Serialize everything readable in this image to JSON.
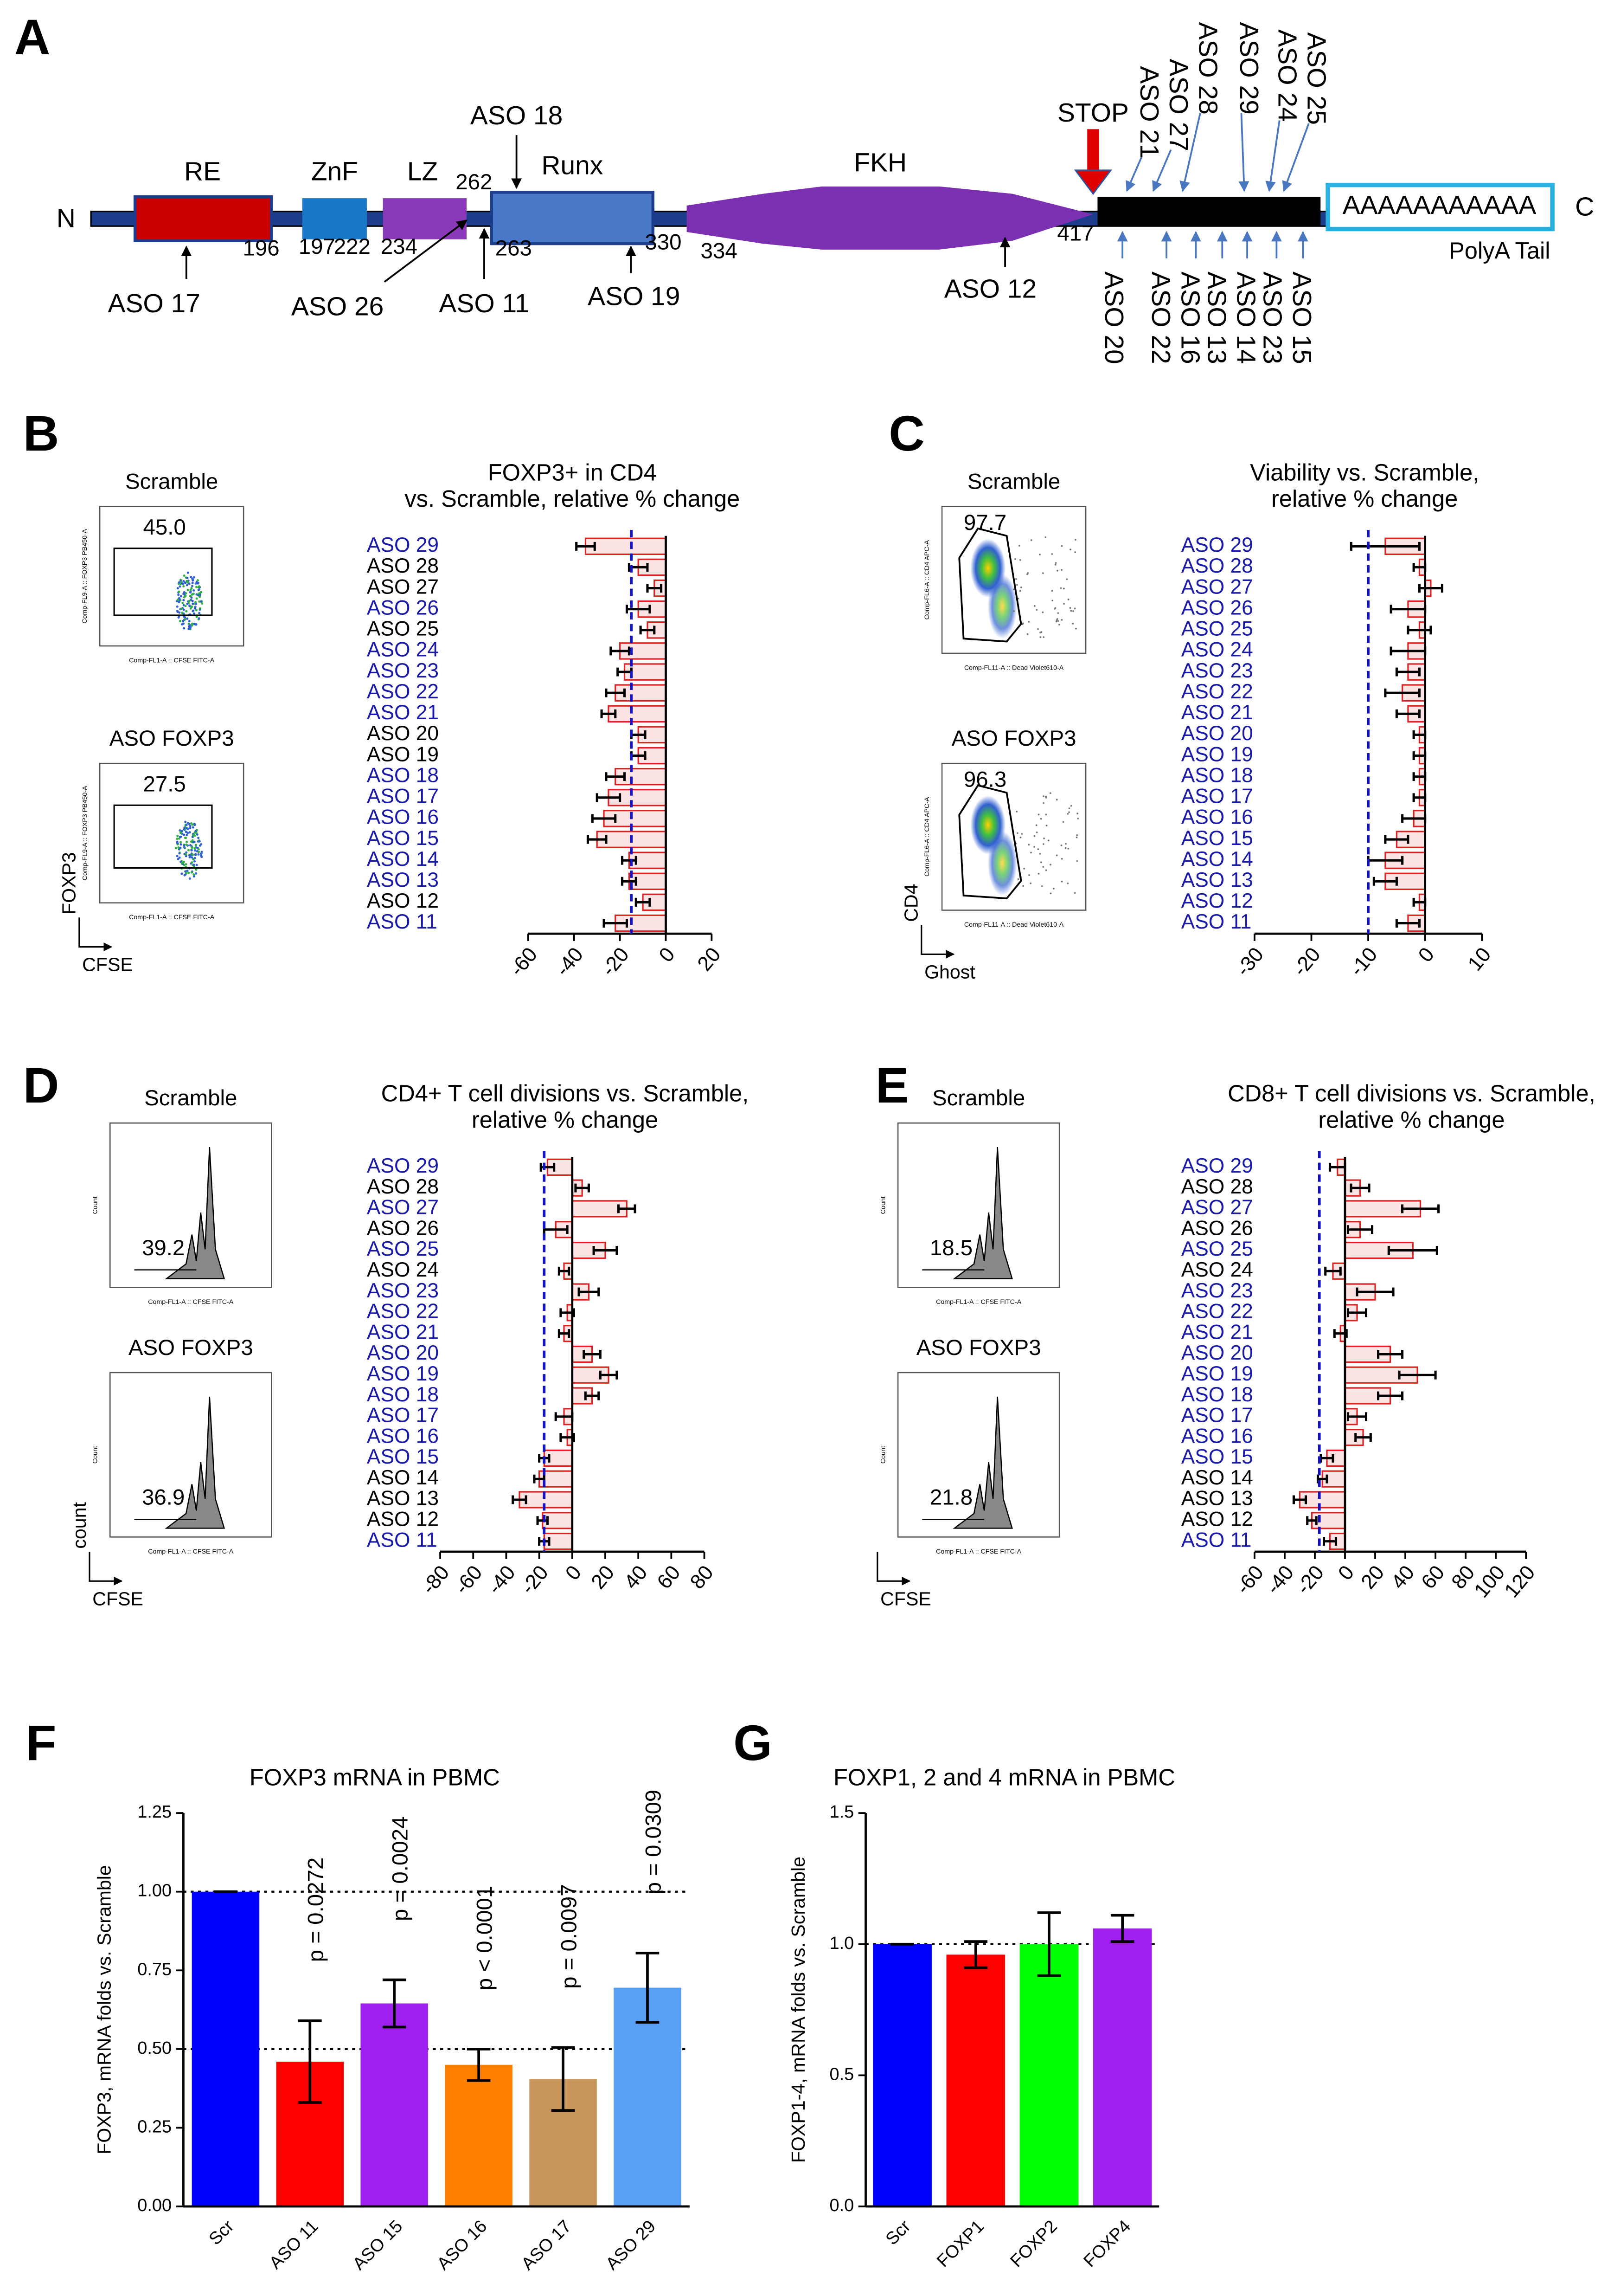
{
  "panel_a": {
    "letter": "A",
    "n_term": "N",
    "c_term": "C",
    "domains": [
      "RE",
      "ZnF",
      "LZ",
      "Runx",
      "FKH"
    ],
    "positions": [
      "196",
      "197",
      "222",
      "234",
      "262",
      "263",
      "330",
      "334",
      "417"
    ],
    "stop": "STOP",
    "polya": "AAAAAAAAAAA",
    "polya_label": "PolyA Tail",
    "aso_below": [
      "ASO 17",
      "ASO 26",
      "ASO 11",
      "ASO 19",
      "ASO 12"
    ],
    "aso_above": [
      "ASO 18"
    ],
    "aso_utr_top": [
      "ASO 21",
      "ASO 27",
      "ASO 28",
      "ASO 29",
      "ASO 24",
      "ASO 25"
    ],
    "aso_utr_bottom": [
      "ASO 20",
      "ASO 22",
      "ASO 16",
      "ASO 13",
      "ASO 14",
      "ASO 23",
      "ASO 15"
    ]
  },
  "chart_data": [
    {
      "type": "bar",
      "orientation": "horizontal",
      "letter": "B",
      "title": [
        "FOXP3+ in CD4",
        "vs. Scramble, relative % change"
      ],
      "categories": [
        "ASO 29",
        "ASO 28",
        "ASO 27",
        "ASO 26",
        "ASO 25",
        "ASO 24",
        "ASO 23",
        "ASO 22",
        "ASO 21",
        "ASO 20",
        "ASO 19",
        "ASO 18",
        "ASO 17",
        "ASO 16",
        "ASO 15",
        "ASO 14",
        "ASO 13",
        "ASO 12",
        "ASO 11"
      ],
      "label_colors": [
        "#1a1aa8",
        "#000000",
        "#000000",
        "#1a1aa8",
        "#000000",
        "#1a1aa8",
        "#1a1aa8",
        "#1a1aa8",
        "#1a1aa8",
        "#000000",
        "#000000",
        "#1a1aa8",
        "#1a1aa8",
        "#1a1aa8",
        "#1a1aa8",
        "#1a1aa8",
        "#1a1aa8",
        "#000000",
        "#1a1aa8"
      ],
      "values": [
        -35,
        -12,
        -5,
        -12,
        -8,
        -20,
        -18,
        -22,
        -25,
        -12,
        -12,
        -22,
        -25,
        -27,
        -30,
        -16,
        -16,
        -10,
        -22
      ],
      "errors": [
        4,
        4,
        3,
        5,
        3,
        4,
        3,
        4,
        3,
        3,
        3,
        4,
        5,
        5,
        4,
        3,
        3,
        3,
        5
      ],
      "color": "#e02020",
      "fill": "#fde4e4",
      "ref_line": -15,
      "ref_color": "#1212c0",
      "xlim": [
        -60,
        20
      ],
      "xticks": [
        -60,
        -40,
        -20,
        0,
        20
      ],
      "inset_kind": "scatter",
      "inset_y_label": "FOXP3",
      "inset_x_label": "CFSE",
      "insets": [
        {
          "title": "Scramble",
          "gate": "45.0",
          "y_axis": "Comp-FL9-A :: FOXP3 PB450-A",
          "x_axis": "Comp-FL1-A :: CFSE FITC-A"
        },
        {
          "title": "ASO FOXP3",
          "gate": "27.5",
          "y_axis": "Comp-FL9-A :: FOXP3 PB450-A",
          "x_axis": "Comp-FL1-A :: CFSE FITC-A"
        }
      ]
    },
    {
      "type": "bar",
      "orientation": "horizontal",
      "letter": "C",
      "title": [
        "Viability vs. Scramble,",
        "relative % change"
      ],
      "categories": [
        "ASO 29",
        "ASO 28",
        "ASO 27",
        "ASO 26",
        "ASO 25",
        "ASO 24",
        "ASO 23",
        "ASO 22",
        "ASO 21",
        "ASO 20",
        "ASO 19",
        "ASO 18",
        "ASO 17",
        "ASO 16",
        "ASO 15",
        "ASO 14",
        "ASO 13",
        "ASO 12",
        "ASO 11"
      ],
      "label_colors": [
        "#1a1aa8",
        "#1a1aa8",
        "#1a1aa8",
        "#1a1aa8",
        "#1a1aa8",
        "#1a1aa8",
        "#1a1aa8",
        "#1a1aa8",
        "#1a1aa8",
        "#1a1aa8",
        "#1a1aa8",
        "#1a1aa8",
        "#1a1aa8",
        "#1a1aa8",
        "#1a1aa8",
        "#1a1aa8",
        "#1a1aa8",
        "#1a1aa8",
        "#1a1aa8"
      ],
      "values": [
        -7,
        -1,
        1,
        -3,
        -1,
        -3,
        -3,
        -4,
        -3,
        -1,
        -1,
        -1,
        -1,
        -2,
        -5,
        -7,
        -7,
        -1,
        -3
      ],
      "errors": [
        6,
        1,
        2,
        3,
        2,
        3,
        2,
        3,
        2,
        1,
        1,
        1,
        1,
        2,
        2,
        3,
        2,
        1,
        2
      ],
      "color": "#e02020",
      "fill": "#fde4e4",
      "ref_line": -10,
      "ref_color": "#1212c0",
      "xlim": [
        -30,
        10
      ],
      "xticks": [
        -30,
        -20,
        -10,
        0,
        10
      ],
      "inset_kind": "gate",
      "inset_y_label": "CD4",
      "inset_x_label": "Ghost",
      "insets": [
        {
          "title": "Scramble",
          "gate": "97.7",
          "y_axis": "Comp-FL6-A :: CD4 APC-A",
          "x_axis": "Comp-FL11-A :: Dead Violet610-A"
        },
        {
          "title": "ASO FOXP3",
          "gate": "96.3",
          "y_axis": "Comp-FL6-A :: CD4 APC-A",
          "x_axis": "Comp-FL11-A :: Dead Violet610-A"
        }
      ]
    },
    {
      "type": "bar",
      "orientation": "horizontal",
      "letter": "D",
      "title": [
        "CD4+ T cell divisions vs. Scramble,",
        "relative % change"
      ],
      "categories": [
        "ASO 29",
        "ASO 28",
        "ASO 27",
        "ASO 26",
        "ASO 25",
        "ASO 24",
        "ASO 23",
        "ASO 22",
        "ASO 21",
        "ASO 20",
        "ASO 19",
        "ASO 18",
        "ASO 17",
        "ASO 16",
        "ASO 15",
        "ASO 14",
        "ASO 13",
        "ASO 12",
        "ASO 11"
      ],
      "label_colors": [
        "#1a1aa8",
        "#000000",
        "#1a1aa8",
        "#000000",
        "#1a1aa8",
        "#000000",
        "#1a1aa8",
        "#1a1aa8",
        "#1a1aa8",
        "#1a1aa8",
        "#1a1aa8",
        "#1a1aa8",
        "#1a1aa8",
        "#1a1aa8",
        "#1a1aa8",
        "#000000",
        "#000000",
        "#000000",
        "#1a1aa8"
      ],
      "values": [
        -15,
        6,
        33,
        -10,
        20,
        -5,
        10,
        -3,
        -5,
        12,
        22,
        12,
        -5,
        -3,
        -17,
        -20,
        -32,
        -18,
        -17
      ],
      "errors": [
        4,
        4,
        5,
        7,
        7,
        3,
        6,
        4,
        3,
        5,
        5,
        4,
        5,
        4,
        3,
        3,
        4,
        3,
        3
      ],
      "color": "#e02020",
      "fill": "#fde4e4",
      "ref_line": -17,
      "ref_color": "#1212c0",
      "xlim": [
        -80,
        80
      ],
      "xticks": [
        -80,
        -60,
        -40,
        -20,
        0,
        20,
        40,
        60,
        80
      ],
      "inset_kind": "histogram",
      "inset_y_label": "count",
      "inset_x_label": "CFSE",
      "insets": [
        {
          "title": "Scramble",
          "gate": "39.2",
          "y_axis": "Count",
          "x_axis": "Comp-FL1-A :: CFSE FITC-A"
        },
        {
          "title": "ASO FOXP3",
          "gate": "36.9",
          "y_axis": "Count",
          "x_axis": "Comp-FL1-A :: CFSE FITC-A"
        }
      ]
    },
    {
      "type": "bar",
      "orientation": "horizontal",
      "letter": "E",
      "title": [
        "CD8+ T cell divisions vs. Scramble,",
        "relative % change"
      ],
      "categories": [
        "ASO 29",
        "ASO 28",
        "ASO 27",
        "ASO 26",
        "ASO 25",
        "ASO 24",
        "ASO 23",
        "ASO 22",
        "ASO 21",
        "ASO 20",
        "ASO 19",
        "ASO 18",
        "ASO 17",
        "ASO 16",
        "ASO 15",
        "ASO 14",
        "ASO 13",
        "ASO 12",
        "ASO 11"
      ],
      "label_colors": [
        "#1a1aa8",
        "#000000",
        "#1a1aa8",
        "#000000",
        "#1a1aa8",
        "#000000",
        "#1a1aa8",
        "#1a1aa8",
        "#1a1aa8",
        "#1a1aa8",
        "#1a1aa8",
        "#1a1aa8",
        "#1a1aa8",
        "#1a1aa8",
        "#1a1aa8",
        "#000000",
        "#000000",
        "#000000",
        "#1a1aa8"
      ],
      "values": [
        -5,
        10,
        50,
        10,
        45,
        -8,
        20,
        8,
        -3,
        30,
        48,
        30,
        8,
        12,
        -12,
        -15,
        -30,
        -22,
        -10
      ],
      "errors": [
        5,
        6,
        12,
        8,
        16,
        5,
        12,
        6,
        4,
        8,
        12,
        8,
        6,
        5,
        4,
        3,
        4,
        3,
        4
      ],
      "color": "#e02020",
      "fill": "#fde4e4",
      "ref_line": -17,
      "ref_color": "#1212c0",
      "xlim": [
        -60,
        120
      ],
      "xticks": [
        -60,
        -40,
        -20,
        0,
        20,
        40,
        60,
        80,
        100,
        120
      ],
      "inset_kind": "histogram",
      "inset_x_label": "CFSE",
      "insets": [
        {
          "title": "Scramble",
          "gate": "18.5",
          "y_axis": "Count",
          "x_axis": "Comp-FL1-A :: CFSE FITC-A"
        },
        {
          "title": "ASO FOXP3",
          "gate": "21.8",
          "y_axis": "Count",
          "x_axis": "Comp-FL1-A :: CFSE FITC-A"
        }
      ]
    },
    {
      "type": "bar",
      "orientation": "vertical",
      "letter": "F",
      "title": "FOXP3 mRNA in PBMC",
      "y_label": "FOXP3, mRNA folds vs. Scramble",
      "categories": [
        "Scr",
        "ASO 11",
        "ASO 15",
        "ASO 16",
        "ASO 17",
        "ASO 29"
      ],
      "values": [
        1.0,
        0.46,
        0.645,
        0.45,
        0.405,
        0.695
      ],
      "errors": [
        0,
        0.13,
        0.075,
        0.05,
        0.1,
        0.11
      ],
      "colors": [
        "#0000ff",
        "#ff0000",
        "#a020f0",
        "#ff8000",
        "#c8965a",
        "#5aa0f5"
      ],
      "annotations": [
        null,
        "p = 0.0272",
        "p = 0.0024",
        "p < 0.0001",
        "p = 0.0097",
        "p = 0.0309"
      ],
      "ref_lines": [
        1.0,
        0.5
      ],
      "ylim": [
        0,
        1.25
      ],
      "yticks": [
        {
          "value": 0,
          "label": "0.00"
        },
        {
          "value": 0.25,
          "label": "0.25"
        },
        {
          "value": 0.5,
          "label": "0.50"
        },
        {
          "value": 0.75,
          "label": "0.75"
        },
        {
          "value": 1,
          "label": "1.00"
        },
        {
          "value": 1.25,
          "label": "1.25"
        }
      ]
    },
    {
      "type": "bar",
      "orientation": "vertical",
      "letter": "G",
      "title": "FOXP1, 2 and 4 mRNA in PBMC",
      "y_label": "FOXP1-4, mRNA folds vs. Scramble",
      "categories": [
        "Scr",
        "FOXP1",
        "FOXP2",
        "FOXP4"
      ],
      "values": [
        1.0,
        0.96,
        1.0,
        1.06
      ],
      "errors": [
        0,
        0.05,
        0.12,
        0.05
      ],
      "colors": [
        "#0000ff",
        "#ff0000",
        "#00ff00",
        "#a020f0"
      ],
      "ref_lines": [
        1.0
      ],
      "ylim": [
        0,
        1.5
      ],
      "yticks": [
        {
          "value": 0,
          "label": "0.0"
        },
        {
          "value": 0.5,
          "label": "0.5"
        },
        {
          "value": 1,
          "label": "1.0"
        },
        {
          "value": 1.5,
          "label": "1.5"
        }
      ]
    }
  ]
}
